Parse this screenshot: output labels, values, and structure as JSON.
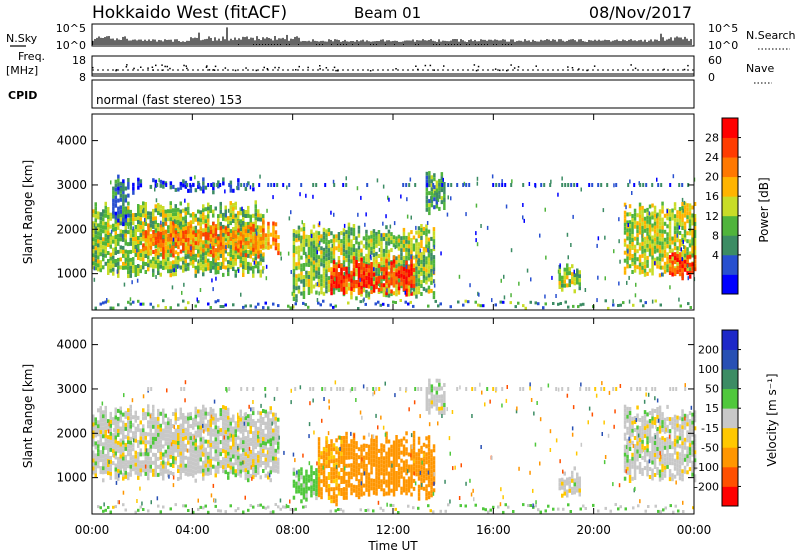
{
  "header": {
    "station": "Hokkaido West (fitACF)",
    "beam": "Beam 01",
    "date": "08/Nov/2017"
  },
  "nsky_panel": {
    "label": "N.Sky",
    "left_ticks": [
      "10^5",
      "10^0"
    ],
    "right_ticks": [
      "10^5",
      "10^0"
    ],
    "right_label": "N.Search"
  },
  "freq_panel": {
    "label_line1": "Freq.",
    "label_line2": "[MHz]",
    "left_ticks": [
      "18",
      "8"
    ],
    "right_ticks": [
      "60",
      "0"
    ],
    "right_label": "Nave"
  },
  "cpid_panel": {
    "label": "CPID",
    "mode_text": "normal (fast stereo) 153"
  },
  "power_panel": {
    "ylabel": "Slant Range [km]",
    "yticks": [
      "4000",
      "3000",
      "2000",
      "1000"
    ],
    "colorbar_label": "Power [dB]",
    "colorbar_ticks": [
      "28",
      "24",
      "20",
      "16",
      "12",
      "8",
      "4"
    ],
    "colors": [
      "#0000ff",
      "#2850d0",
      "#3c8c64",
      "#50b43c",
      "#c8dc28",
      "#ffb400",
      "#ff7800",
      "#ff3c00",
      "#ff0000"
    ]
  },
  "velocity_panel": {
    "ylabel": "Slant Range [km]",
    "yticks": [
      "4000",
      "3000",
      "2000",
      "1000"
    ],
    "colorbar_label": "Velocity [m s⁻¹]",
    "colorbar_ticks": [
      "200",
      "100",
      "50",
      "15",
      "-15",
      "-50",
      "-100",
      "-200"
    ],
    "colors": [
      "#1e28c8",
      "#2850b4",
      "#3c8c64",
      "#50c83c",
      "#c8c8c8",
      "#ffc800",
      "#ff9600",
      "#ff5000",
      "#ff0000"
    ]
  },
  "xaxis": {
    "label": "Time UT",
    "ticks": [
      "00:00",
      "04:00",
      "08:00",
      "12:00",
      "16:00",
      "20:00",
      "00:00"
    ]
  },
  "chart_data": [
    {
      "type": "heatmap",
      "name": "power",
      "xlabel": "Time UT",
      "ylabel": "Slant Range [km]",
      "xlim_hours": [
        0,
        24
      ],
      "ylim_km": [
        180,
        4600
      ],
      "colorbar": "Power [dB]",
      "regions": [
        {
          "t0": 0.0,
          "t1": 6.8,
          "r_lo": 1050,
          "r_hi": 2500,
          "level_db": 14
        },
        {
          "t0": 0.8,
          "t1": 1.4,
          "r_lo": 2200,
          "r_hi": 3100,
          "level_db": 8
        },
        {
          "t0": 2.0,
          "t1": 7.4,
          "r_lo": 1500,
          "r_hi": 2050,
          "level_db": 22
        },
        {
          "t0": 1.0,
          "t1": 6.5,
          "r_lo": 2950,
          "r_hi": 3050,
          "level_db": 6
        },
        {
          "t0": 8.0,
          "t1": 13.6,
          "r_lo": 550,
          "r_hi": 2000,
          "level_db": 14
        },
        {
          "t0": 9.5,
          "t1": 12.8,
          "r_lo": 650,
          "r_hi": 1250,
          "level_db": 28
        },
        {
          "t0": 13.3,
          "t1": 14.0,
          "r_lo": 2500,
          "r_hi": 3200,
          "level_db": 10
        },
        {
          "t0": 18.6,
          "t1": 19.4,
          "r_lo": 700,
          "r_hi": 1100,
          "level_db": 14
        },
        {
          "t0": 21.2,
          "t1": 24.0,
          "r_lo": 1050,
          "r_hi": 2500,
          "level_db": 16
        },
        {
          "t0": 23.0,
          "t1": 24.0,
          "r_lo": 950,
          "r_hi": 1400,
          "level_db": 26
        }
      ]
    },
    {
      "type": "heatmap",
      "name": "velocity",
      "xlabel": "Time UT",
      "ylabel": "Slant Range [km]",
      "xlim_hours": [
        0,
        24
      ],
      "ylim_km": [
        180,
        4600
      ],
      "colorbar": "Velocity [m s⁻¹]",
      "regions": [
        {
          "t0": 0.0,
          "t1": 7.4,
          "r_lo": 1050,
          "r_hi": 2500,
          "velocity": 0
        },
        {
          "t0": 8.0,
          "t1": 9.0,
          "r_lo": 550,
          "r_hi": 1200,
          "velocity": 30
        },
        {
          "t0": 9.0,
          "t1": 10.0,
          "r_lo": 550,
          "r_hi": 1800,
          "velocity": -60
        },
        {
          "t0": 10.0,
          "t1": 13.6,
          "r_lo": 650,
          "r_hi": 1900,
          "velocity": -80
        },
        {
          "t0": 13.3,
          "t1": 14.0,
          "r_lo": 2500,
          "r_hi": 3200,
          "velocity": 0
        },
        {
          "t0": 18.6,
          "t1": 19.4,
          "r_lo": 700,
          "r_hi": 1100,
          "velocity": 0
        },
        {
          "t0": 21.2,
          "t1": 24.0,
          "r_lo": 1050,
          "r_hi": 2500,
          "velocity": 0
        }
      ]
    }
  ]
}
